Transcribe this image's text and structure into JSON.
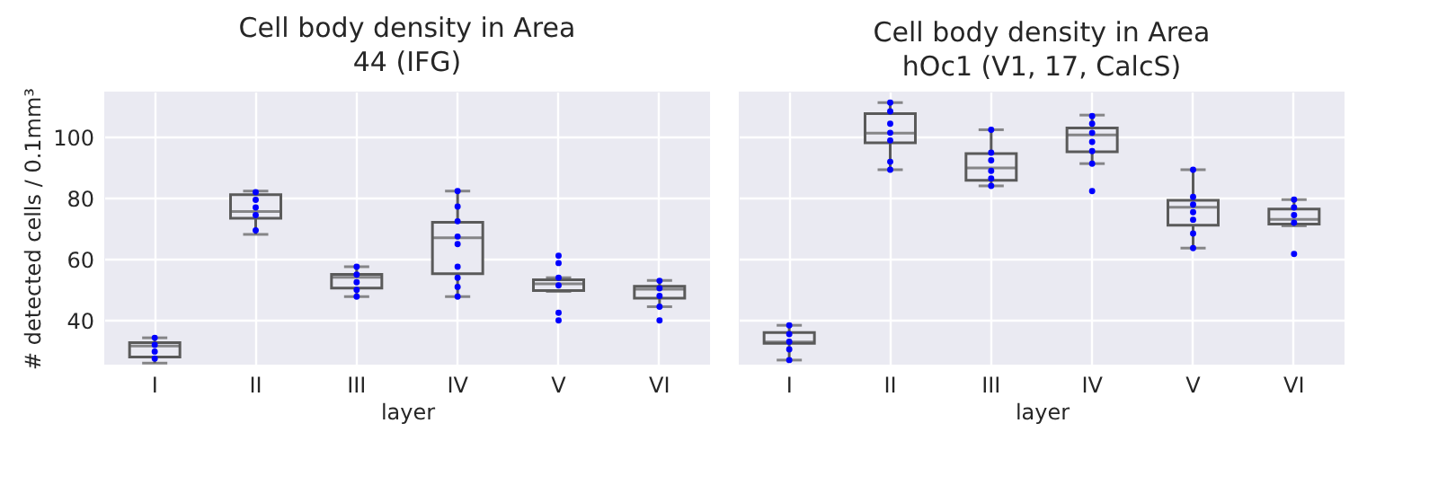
{
  "chart_data": [
    {
      "type": "box",
      "title": "Cell body density in Area\n44 (IFG)",
      "xlabel": "layer",
      "ylabel": "# detected cells / 0.1mm³",
      "categories": [
        "I",
        "II",
        "III",
        "IV",
        "V",
        "VI"
      ],
      "ylim": [
        25.5,
        115
      ],
      "yticks": [
        40,
        60,
        80,
        100
      ],
      "grid": true,
      "series": [
        {
          "type": "box",
          "color": "#5a5a5a",
          "boxes": [
            {
              "low": 26,
              "q1": 28,
              "median": 31.6,
              "q3": 32.7,
              "high": 34.3
            },
            {
              "low": 68.2,
              "q1": 73.5,
              "median": 75.7,
              "q3": 81.2,
              "high": 82.4
            },
            {
              "low": 47.8,
              "q1": 50.6,
              "median": 54.1,
              "q3": 55.1,
              "high": 57.6
            },
            {
              "low": 47.8,
              "q1": 55.3,
              "median": 67.1,
              "q3": 72.2,
              "high": 82.4
            },
            {
              "low": 49.5,
              "q1": 49.8,
              "median": 52,
              "q3": 53.3,
              "high": 54
            },
            {
              "low": 44.5,
              "q1": 47.3,
              "median": 50.2,
              "q3": 51.2,
              "high": 53.1
            }
          ]
        },
        {
          "type": "scatter",
          "color": "#0000ff",
          "marker": "circle",
          "x": [
            "I",
            "I",
            "I",
            "I",
            "II",
            "II",
            "II",
            "II",
            "II",
            "III",
            "III",
            "III",
            "III",
            "III",
            "IV",
            "IV",
            "IV",
            "IV",
            "IV",
            "IV",
            "IV",
            "IV",
            "IV",
            "V",
            "V",
            "V",
            "V",
            "V",
            "V",
            "VI",
            "VI",
            "VI",
            "VI",
            "VI"
          ],
          "values": [
            34.3,
            32,
            29.8,
            27.5,
            82,
            79.5,
            77,
            74.5,
            69.5,
            57.6,
            55,
            52.5,
            50,
            47.8,
            82.4,
            77.3,
            72.5,
            67.5,
            65,
            57.6,
            54,
            51,
            47.8,
            61.2,
            58.8,
            54,
            51.5,
            42.5,
            40,
            53,
            50.5,
            48,
            44.5,
            40
          ]
        }
      ]
    },
    {
      "type": "box",
      "title": "Cell body density in Area\nhOc1 (V1, 17, CalcS)",
      "xlabel": "layer",
      "categories": [
        "I",
        "II",
        "III",
        "IV",
        "V",
        "VI"
      ],
      "ylim": [
        25.5,
        115
      ],
      "yticks": [
        40,
        60,
        80,
        100
      ],
      "grid": true,
      "tick_labels": "x",
      "series": [
        {
          "type": "box",
          "color": "#5a5a5a",
          "boxes": [
            {
              "low": 27,
              "q1": 32.5,
              "median": 32.9,
              "q3": 36,
              "high": 38.4
            },
            {
              "low": 89.4,
              "q1": 98.2,
              "median": 101.4,
              "q3": 107.8,
              "high": 111.4
            },
            {
              "low": 84.1,
              "q1": 85.9,
              "median": 90,
              "q3": 94.7,
              "high": 102.5
            },
            {
              "low": 91.4,
              "q1": 95.3,
              "median": 100.8,
              "q3": 103.1,
              "high": 107.3
            },
            {
              "low": 63.7,
              "q1": 71.2,
              "median": 77.1,
              "q3": 79.4,
              "high": 89.4
            },
            {
              "low": 71,
              "q1": 71.6,
              "median": 73.1,
              "q3": 76.5,
              "high": 79.6
            }
          ]
        },
        {
          "type": "scatter",
          "color": "#0000ff",
          "marker": "circle",
          "x": [
            "I",
            "I",
            "I",
            "I",
            "I",
            "II",
            "II",
            "II",
            "II",
            "II",
            "II",
            "II",
            "III",
            "III",
            "III",
            "III",
            "III",
            "III",
            "IV",
            "IV",
            "IV",
            "IV",
            "IV",
            "IV",
            "IV",
            "V",
            "V",
            "V",
            "V",
            "V",
            "V",
            "V",
            "VI",
            "VI",
            "VI",
            "VI",
            "VI"
          ],
          "values": [
            38.4,
            35.5,
            33,
            30.5,
            27,
            111.4,
            108.5,
            104.5,
            101.5,
            99,
            92,
            89.4,
            102.5,
            95,
            92.5,
            89,
            86.5,
            84.1,
            107,
            104.5,
            101.5,
            98.5,
            95.5,
            91.4,
            82.4,
            89.4,
            80.5,
            78,
            75.5,
            73,
            68.5,
            63.7,
            79.6,
            77,
            74.5,
            72,
            61.8
          ]
        }
      ]
    }
  ]
}
